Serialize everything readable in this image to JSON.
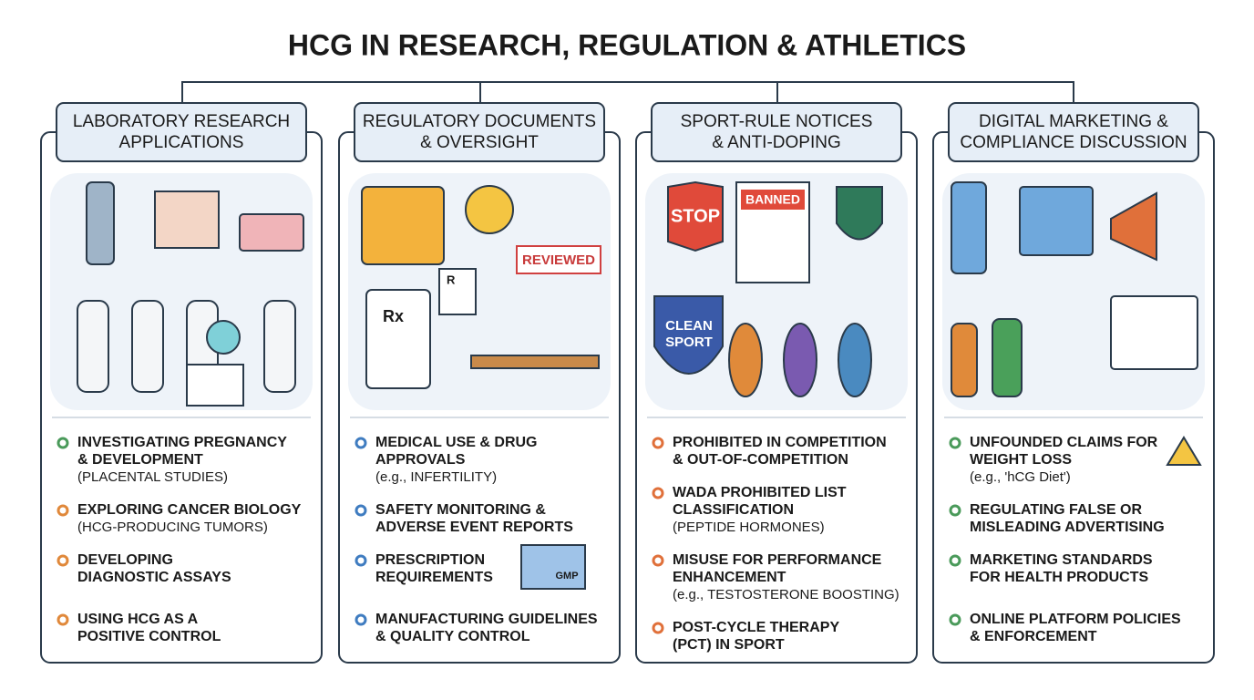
{
  "title": "HCG IN RESEARCH, REGULATION & ATHLETICS",
  "columns": [
    {
      "header": [
        "LABORATORY RESEARCH",
        "APPLICATIONS"
      ],
      "color": "#4a9a5a",
      "labels": [],
      "items": [
        {
          "lines": [
            "INVESTIGATING PREGNANCY",
            "& DEVELOPMENT"
          ],
          "note": "(PLACENTAL STUDIES)",
          "color": "#4a9a5a"
        },
        {
          "lines": [
            "EXPLORING CANCER BIOLOGY"
          ],
          "note": "(HCG-PRODUCING TUMORS)",
          "color": "#e0883a"
        },
        {
          "lines": [
            "DEVELOPING",
            "DIAGNOSTIC ASSAYS"
          ],
          "note": null,
          "color": "#e0883a"
        },
        {
          "lines": [
            "USING HCG AS A",
            "POSITIVE CONTROL"
          ],
          "note": null,
          "color": "#e0883a"
        }
      ]
    },
    {
      "header": [
        "REGULATORY DOCUMENTS",
        "& OVERSIGHT"
      ],
      "color": "#3f7cc0",
      "labels": [
        "REVIEWED",
        "Rx",
        "R",
        "GMP"
      ],
      "items": [
        {
          "lines": [
            "MEDICAL USE & DRUG",
            "APPROVALS"
          ],
          "note": "(e.g., INFERTILITY)",
          "color": "#3f7cc0"
        },
        {
          "lines": [
            "SAFETY MONITORING &",
            "ADVERSE EVENT REPORTS"
          ],
          "note": null,
          "color": "#3f7cc0"
        },
        {
          "lines": [
            "PRESCRIPTION",
            "REQUIREMENTS"
          ],
          "note": null,
          "color": "#3f7cc0"
        },
        {
          "lines": [
            "MANUFACTURING GUIDELINES",
            "& QUALITY CONTROL"
          ],
          "note": null,
          "color": "#3f7cc0"
        }
      ]
    },
    {
      "header": [
        "SPORT-RULE NOTICES",
        "& ANTI-DOPING"
      ],
      "color": "#e0703a",
      "labels": [
        "STOP",
        "BANNED",
        "CLEAN",
        "SPORT"
      ],
      "items": [
        {
          "lines": [
            "PROHIBITED IN COMPETITION",
            "& OUT-OF-COMPETITION"
          ],
          "note": null,
          "color": "#e0703a"
        },
        {
          "lines": [
            "WADA PROHIBITED LIST",
            "CLASSIFICATION"
          ],
          "note": "(PEPTIDE HORMONES)",
          "color": "#e0703a"
        },
        {
          "lines": [
            "MISUSE FOR PERFORMANCE",
            "ENHANCEMENT"
          ],
          "note": "(e.g., TESTOSTERONE BOOSTING)",
          "color": "#e0703a"
        },
        {
          "lines": [
            "POST-CYCLE THERAPY",
            "(PCT) IN SPORT"
          ],
          "note": null,
          "color": "#e0703a"
        }
      ]
    },
    {
      "header": [
        "DIGITAL MARKETING &",
        "COMPLIANCE DISCUSSION"
      ],
      "color": "#4a9a5a",
      "labels": [],
      "items": [
        {
          "lines": [
            "UNFOUNDED CLAIMS FOR",
            "WEIGHT LOSS"
          ],
          "note": "(e.g., 'hCG Diet')",
          "color": "#4a9a5a"
        },
        {
          "lines": [
            "REGULATING FALSE OR",
            "MISLEADING ADVERTISING"
          ],
          "note": null,
          "color": "#4a9a5a"
        },
        {
          "lines": [
            "MARKETING STANDARDS",
            "FOR HEALTH PRODUCTS"
          ],
          "note": null,
          "color": "#4a9a5a"
        },
        {
          "lines": [
            "ONLINE PLATFORM POLICIES",
            "& ENFORCEMENT"
          ],
          "note": null,
          "color": "#4a9a5a"
        }
      ]
    }
  ]
}
